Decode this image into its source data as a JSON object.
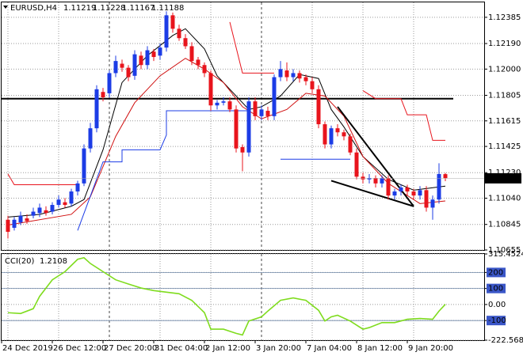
{
  "chart_data": [
    {
      "type": "candlestick",
      "title": "EURUSD,H4",
      "x_labels": [
        "24 Dec 2019",
        "26 Dec 12:00",
        "27 Dec 20:00",
        "31 Dec 04:00",
        "2 Jan 12:00",
        "3 Jan 20:00",
        "7 Jan 04:00",
        "8 Jan 12:00",
        "9 Jan 20:00"
      ],
      "open": [
        1.1088,
        1.1082,
        1.1086,
        1.1089,
        1.1091,
        1.1093,
        1.1095,
        1.1094,
        1.1099,
        1.1101,
        1.11,
        1.1109,
        1.1115,
        1.1141,
        1.1156,
        1.1183,
        1.1182,
        1.1197,
        1.1204,
        1.1201,
        1.1195,
        1.121,
        1.1203,
        1.1213,
        1.121,
        1.1216,
        1.124,
        1.123,
        1.1223,
        1.1217,
        1.1207,
        1.1203,
        1.1197,
        1.1173,
        1.1175,
        1.1176,
        1.117,
        1.1142,
        1.1138,
        1.1176,
        1.1165,
        1.1169,
        1.1165,
        1.1194,
        1.1199,
        1.1194,
        1.1197,
        1.1194,
        1.1191,
        1.1185,
        1.1159,
        1.1144,
        1.1156,
        1.1153,
        1.115,
        1.1138,
        1.112,
        1.1118,
        1.1119,
        1.1115,
        1.1119,
        1.1106,
        1.1109,
        1.1112,
        1.1109,
        1.1106,
        1.111,
        1.1097,
        1.1103,
        1.11219
      ],
      "high": [
        1.1091,
        1.109,
        1.1094,
        1.1092,
        1.1097,
        1.11,
        1.1098,
        1.1101,
        1.1106,
        1.1104,
        1.1111,
        1.1117,
        1.1144,
        1.116,
        1.1188,
        1.1186,
        1.1199,
        1.121,
        1.1207,
        1.1203,
        1.1214,
        1.1213,
        1.1217,
        1.1215,
        1.1219,
        1.1243,
        1.1242,
        1.1233,
        1.1226,
        1.122,
        1.1209,
        1.1205,
        1.1199,
        1.1177,
        1.1179,
        1.1179,
        1.1173,
        1.1144,
        1.1179,
        1.1179,
        1.1173,
        1.1172,
        1.1196,
        1.1206,
        1.1205,
        1.12,
        1.1199,
        1.1196,
        1.1194,
        1.1188,
        1.1161,
        1.1158,
        1.1159,
        1.1155,
        1.1152,
        1.1141,
        1.1123,
        1.1122,
        1.1121,
        1.1121,
        1.1121,
        1.1111,
        1.1114,
        1.1114,
        1.1111,
        1.1113,
        1.1113,
        1.1106,
        1.113,
        1.11228
      ],
      "low": [
        1.1074,
        1.108,
        1.1084,
        1.1085,
        1.1089,
        1.109,
        1.1091,
        1.1092,
        1.1097,
        1.1097,
        1.1098,
        1.1106,
        1.1113,
        1.1138,
        1.1153,
        1.1176,
        1.1179,
        1.1194,
        1.1198,
        1.1191,
        1.1192,
        1.12,
        1.12,
        1.1206,
        1.1207,
        1.1213,
        1.1227,
        1.1221,
        1.1215,
        1.1203,
        1.12,
        1.1194,
        1.1169,
        1.117,
        1.1173,
        1.1168,
        1.1138,
        1.1124,
        1.1135,
        1.1162,
        1.1162,
        1.1162,
        1.1162,
        1.1191,
        1.1191,
        1.1191,
        1.119,
        1.1188,
        1.1182,
        1.1156,
        1.1141,
        1.1141,
        1.115,
        1.1147,
        1.1136,
        1.1118,
        1.1115,
        1.1115,
        1.1112,
        1.1112,
        1.1103,
        1.1103,
        1.1106,
        1.1106,
        1.1103,
        1.1103,
        1.1094,
        1.1088,
        1.11,
        1.11167
      ],
      "close": [
        1.1079,
        1.1088,
        1.1091,
        1.1087,
        1.1094,
        1.1097,
        1.1093,
        1.1099,
        1.1103,
        1.1099,
        1.1109,
        1.1115,
        1.1141,
        1.1156,
        1.1185,
        1.1179,
        1.1197,
        1.1206,
        1.1201,
        1.1194,
        1.1211,
        1.1203,
        1.1214,
        1.1209,
        1.1216,
        1.124,
        1.123,
        1.1223,
        1.1217,
        1.1206,
        1.1203,
        1.1197,
        1.1173,
        1.1175,
        1.1176,
        1.117,
        1.1141,
        1.1138,
        1.1176,
        1.1165,
        1.117,
        1.1165,
        1.1194,
        1.12,
        1.1194,
        1.1197,
        1.1193,
        1.1191,
        1.1185,
        1.1159,
        1.1144,
        1.1156,
        1.1153,
        1.115,
        1.1138,
        1.112,
        1.1118,
        1.1119,
        1.1115,
        1.1119,
        1.1106,
        1.1109,
        1.1112,
        1.1109,
        1.1106,
        1.111,
        1.1097,
        1.1103,
        1.1122,
        1.11188
      ],
      "up_color": "#1c3ce6",
      "down_color": "#e8141c",
      "ylim": [
        1.10655,
        1.12496
      ],
      "yticks": [
        1.12385,
        {
          "value": 1.1219,
          "label": "1.12190"
        },
        {
          "value": 1.12,
          "label": "1.12000"
        },
        1.11805,
        1.11615,
        1.11425,
        {
          "value": 1.1123,
          "label": "1.11230"
        },
        {
          "value": 1.1104,
          "label": "1.11040"
        },
        1.10845,
        1.10655
      ],
      "grid": true,
      "level": 1.1178,
      "level_color": "#000000",
      "overlays": [
        {
          "color": "#000000",
          "x": [
            0,
            5,
            10,
            12,
            15,
            18,
            22,
            26,
            28,
            31,
            33,
            36,
            38,
            40,
            43,
            46,
            49,
            51,
            53,
            56,
            60,
            64,
            69
          ],
          "values": [
            1.109,
            1.1092,
            1.1098,
            1.1103,
            1.114,
            1.119,
            1.121,
            1.1225,
            1.123,
            1.1215,
            1.1195,
            1.118,
            1.117,
            1.1172,
            1.118,
            1.1196,
            1.1193,
            1.117,
            1.1157,
            1.1135,
            1.1118,
            1.111,
            1.1113
          ]
        },
        {
          "color": "#d01010",
          "x": [
            0,
            10,
            13,
            17,
            20,
            24,
            28,
            31,
            34,
            37,
            40,
            44,
            47,
            50,
            53,
            56,
            60,
            65,
            69
          ],
          "values": [
            1.1084,
            1.1092,
            1.1105,
            1.115,
            1.1175,
            1.1195,
            1.1208,
            1.12,
            1.119,
            1.1172,
            1.1163,
            1.117,
            1.1182,
            1.118,
            1.1165,
            1.1135,
            1.1115,
            1.11,
            1.1102
          ]
        },
        {
          "color": "#1c3ce6",
          "x": [
            11,
            15,
            18,
            18,
            24,
            25,
            25,
            38,
            40,
            43,
            54
          ],
          "values": [
            1.108,
            1.1131,
            1.1131,
            1.114,
            1.114,
            1.1151,
            1.1169,
            1.1169,
            null,
            1.1133,
            1.1133
          ]
        },
        {
          "color": "#e8141c",
          "x": [
            0,
            1,
            11,
            12,
            35,
            37,
            42,
            43,
            56,
            58,
            62,
            63,
            66,
            67,
            69
          ],
          "values": [
            1.1122,
            1.1114,
            1.1114,
            null,
            1.1235,
            1.1197,
            1.1197,
            null,
            1.1184,
            1.1178,
            1.1178,
            1.1166,
            1.1166,
            1.1147,
            1.1147
          ]
        },
        {
          "color": "#000000",
          "x": [
            52,
            64
          ],
          "values": [
            1.1172,
            1.1098
          ]
        },
        {
          "color": "#000000",
          "x": [
            51,
            64
          ],
          "values": [
            1.1117,
            1.1098
          ]
        }
      ]
    },
    {
      "type": "line",
      "title": "CCI(20)",
      "color": "#7fdc1e",
      "x": [
        0,
        2,
        4,
        5,
        7,
        9,
        11,
        12,
        13,
        15,
        17,
        19,
        21,
        23,
        25,
        27,
        29,
        31,
        32,
        34,
        36,
        37,
        38,
        40,
        41,
        43,
        45,
        47,
        49,
        50,
        51,
        52,
        54,
        56,
        57,
        59,
        61,
        63,
        65,
        67,
        68,
        69
      ],
      "values": [
        -51,
        -56,
        -26,
        51,
        154,
        205,
        282,
        292,
        256,
        205,
        154,
        128,
        103,
        87,
        77,
        67,
        26,
        -51,
        -154,
        -154,
        -180,
        -190,
        -103,
        -77,
        -41,
        26,
        41,
        26,
        -36,
        -103,
        -77,
        -67,
        -103,
        -154,
        -144,
        -113,
        -113,
        -92,
        -87,
        -92,
        -41,
        1.2108
      ],
      "ylim": [
        -222.5688,
        315.4524
      ],
      "yticks": [
        315.4524,
        200,
        100,
        {
          "value": 0,
          "label": "0.00"
        },
        -100,
        -222.5688
      ],
      "levels": [
        200,
        100,
        -100
      ],
      "grid": true
    }
  ]
}
